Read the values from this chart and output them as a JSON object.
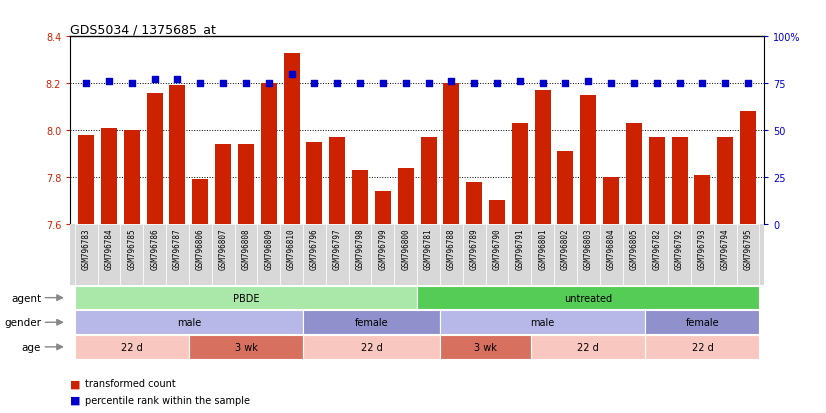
{
  "title": "GDS5034 / 1375685_at",
  "samples": [
    "GSM796783",
    "GSM796784",
    "GSM796785",
    "GSM796786",
    "GSM796787",
    "GSM796806",
    "GSM796807",
    "GSM796808",
    "GSM796809",
    "GSM796810",
    "GSM796796",
    "GSM796797",
    "GSM796798",
    "GSM796799",
    "GSM796800",
    "GSM796781",
    "GSM796788",
    "GSM796789",
    "GSM796790",
    "GSM796791",
    "GSM796801",
    "GSM796802",
    "GSM796803",
    "GSM796804",
    "GSM796805",
    "GSM796782",
    "GSM796792",
    "GSM796793",
    "GSM796794",
    "GSM796795"
  ],
  "bar_values": [
    7.98,
    8.01,
    8.0,
    8.16,
    8.19,
    7.79,
    7.94,
    7.94,
    8.2,
    8.33,
    7.95,
    7.97,
    7.83,
    7.74,
    7.84,
    7.97,
    8.2,
    7.78,
    7.7,
    8.03,
    8.17,
    7.91,
    8.15,
    7.8,
    8.03,
    7.97,
    7.97,
    7.81,
    7.97,
    8.08
  ],
  "percentile_values": [
    75,
    76,
    75,
    77,
    77,
    75,
    75,
    75,
    75,
    80,
    75,
    75,
    75,
    75,
    75,
    75,
    76,
    75,
    75,
    76,
    75,
    75,
    76,
    75,
    75,
    75,
    75,
    75,
    75,
    75
  ],
  "bar_color": "#cc2200",
  "percentile_color": "#0000cc",
  "ylim_left": [
    7.6,
    8.4
  ],
  "ylim_right": [
    0,
    100
  ],
  "yticks_left": [
    7.6,
    7.8,
    8.0,
    8.2,
    8.4
  ],
  "yticks_right": [
    0,
    25,
    50,
    75,
    100
  ],
  "ytick_labels_right": [
    "0",
    "25",
    "50",
    "75",
    "100%"
  ],
  "gridlines": [
    7.8,
    8.0,
    8.2
  ],
  "agent_groups": [
    {
      "label": "PBDE",
      "start": 0,
      "end": 15,
      "color": "#aae8aa"
    },
    {
      "label": "untreated",
      "start": 15,
      "end": 30,
      "color": "#55cc55"
    }
  ],
  "gender_groups": [
    {
      "label": "male",
      "start": 0,
      "end": 10,
      "color": "#b8b8e8"
    },
    {
      "label": "female",
      "start": 10,
      "end": 16,
      "color": "#9090cc"
    },
    {
      "label": "male",
      "start": 16,
      "end": 25,
      "color": "#b8b8e8"
    },
    {
      "label": "female",
      "start": 25,
      "end": 30,
      "color": "#9090cc"
    }
  ],
  "age_groups": [
    {
      "label": "22 d",
      "start": 0,
      "end": 5,
      "color": "#f8c8c0"
    },
    {
      "label": "3 wk",
      "start": 5,
      "end": 10,
      "color": "#d87060"
    },
    {
      "label": "22 d",
      "start": 10,
      "end": 16,
      "color": "#f8c8c0"
    },
    {
      "label": "3 wk",
      "start": 16,
      "end": 20,
      "color": "#d87060"
    },
    {
      "label": "22 d",
      "start": 20,
      "end": 25,
      "color": "#f8c8c0"
    },
    {
      "label": "22 d",
      "start": 25,
      "end": 30,
      "color": "#f8c8c0"
    }
  ],
  "row_labels": [
    "agent",
    "gender",
    "age"
  ],
  "legend_items": [
    {
      "label": "transformed count",
      "color": "#cc2200"
    },
    {
      "label": "percentile rank within the sample",
      "color": "#0000cc"
    }
  ],
  "bar_width": 0.7,
  "background_color": "#ffffff",
  "tick_bg_color": "#d8d8d8",
  "arrow_color": "#888888"
}
